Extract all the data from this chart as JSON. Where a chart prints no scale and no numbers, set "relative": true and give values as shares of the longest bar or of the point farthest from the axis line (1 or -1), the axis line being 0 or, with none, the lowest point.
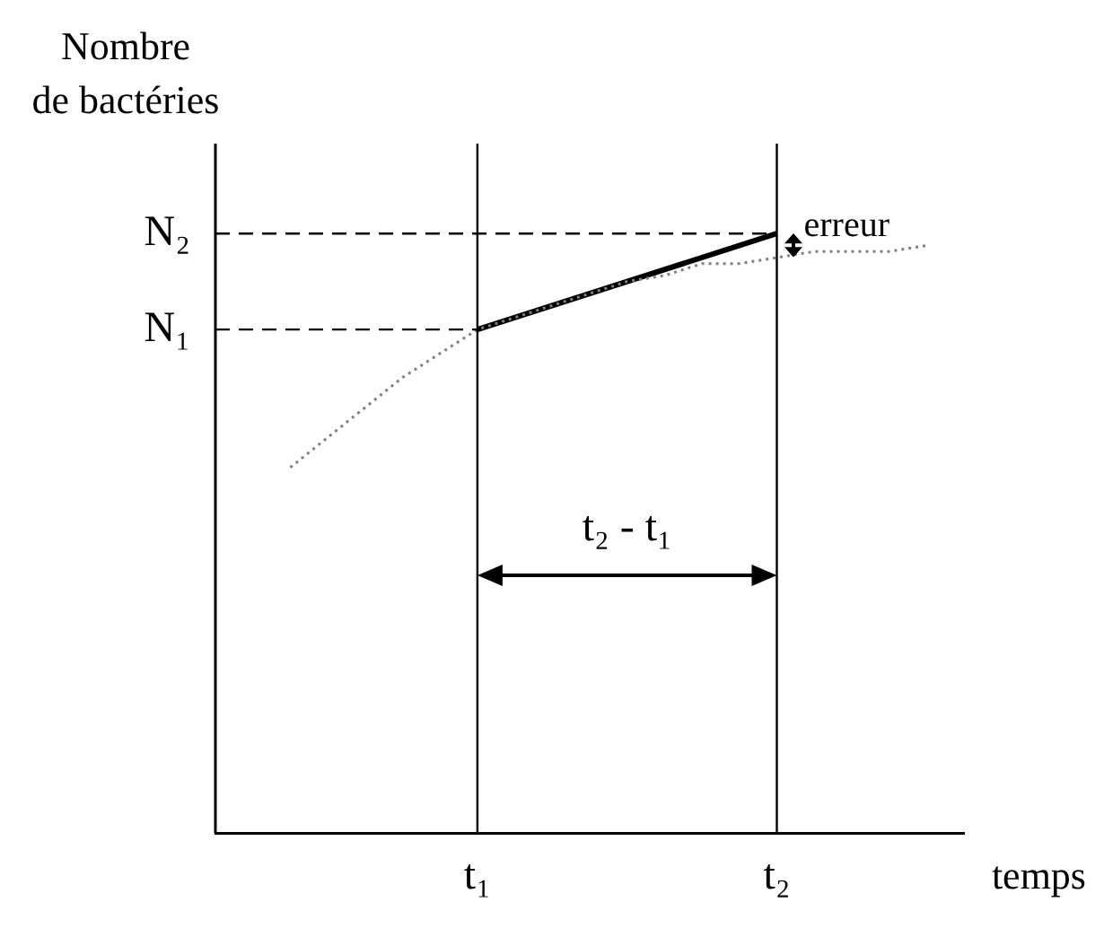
{
  "chart_data": {
    "type": "line",
    "relative": true,
    "ylabel": "Nombre\nde bactéries",
    "xlabel": "temps",
    "categories": [
      null,
      null,
      null,
      null,
      null,
      null,
      null,
      "t₁",
      null,
      null,
      null,
      null,
      null,
      null,
      null,
      "t₂",
      null,
      null,
      null,
      null,
      null
    ],
    "series": [
      {
        "color": "#808080",
        "line_style": "dotted",
        "values": [
          null,
          null,
          0.61,
          0.66,
          0.71,
          0.76,
          0.8,
          0.84,
          0.86,
          0.88,
          0.9,
          0.92,
          0.93,
          0.95,
          0.95,
          0.96,
          0.97,
          0.97,
          0.97,
          0.98,
          null
        ]
      },
      {
        "color": "#000000",
        "line_style": "solid",
        "values": [
          null,
          null,
          null,
          null,
          null,
          null,
          null,
          0.84,
          null,
          null,
          null,
          null,
          null,
          null,
          null,
          1,
          null,
          null,
          null,
          null,
          null
        ]
      }
    ],
    "ref_lines": [
      {
        "axis": "x",
        "value": "t₁",
        "line_style": "solid"
      },
      {
        "axis": "x",
        "value": "t₂",
        "line_style": "solid"
      },
      {
        "axis": "y",
        "value": 0.84,
        "label": "N₁",
        "line_style": "dashed"
      },
      {
        "axis": "y",
        "value": 1,
        "label": "N₂",
        "line_style": "dashed"
      }
    ],
    "annotations": [
      {
        "text": "erreur",
        "x": "t₂",
        "y": 1
      },
      "t₂ - t₁"
    ],
    "grid": false,
    "legend": false,
    "marker": "none"
  }
}
